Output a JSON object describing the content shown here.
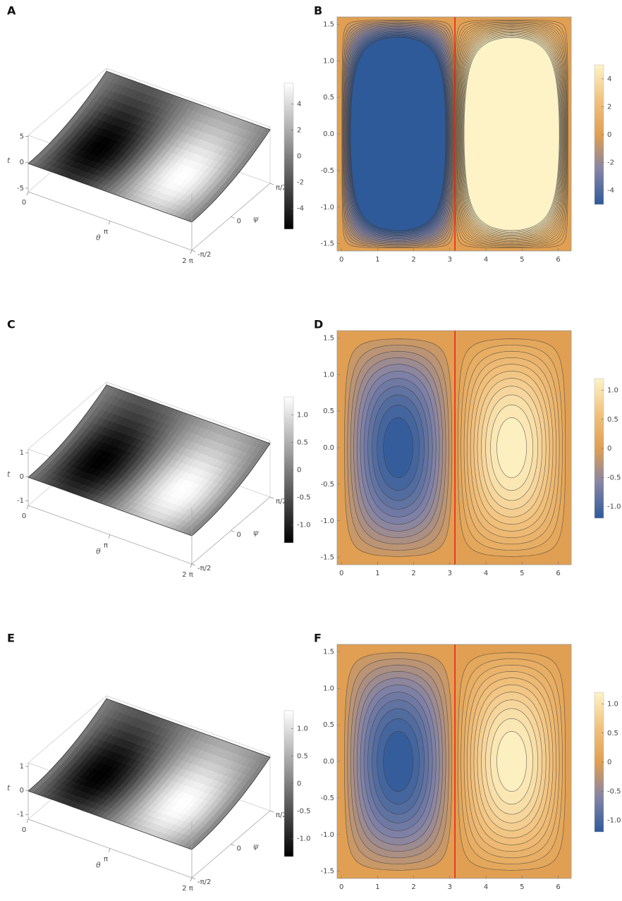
{
  "chart_data": [
    {
      "type": "surface3d",
      "label": "A",
      "xlabel": "θ",
      "ylabel": "ψ",
      "zlabel": "t",
      "xlim": [
        0,
        6.2832
      ],
      "ylim": [
        -1.5708,
        1.5708
      ],
      "zlim": [
        -5.7,
        5.2
      ],
      "xticks": [
        0,
        {
          "value": 3.1416,
          "label": "π"
        },
        {
          "value": 6.2832,
          "label": "2 π"
        }
      ],
      "yticks": [
        {
          "value": -1.5708,
          "label": "-π/2"
        },
        0,
        {
          "value": 1.5708,
          "label": "π/2"
        }
      ],
      "zticks": [
        -5,
        0,
        5
      ],
      "colorbar": {
        "lim": [
          -5.6,
          5.6
        ],
        "ticks": [
          -4,
          -2,
          0,
          2,
          4
        ],
        "colormap": [
          "#000000",
          "#ffffff"
        ]
      }
    },
    {
      "type": "contour",
      "label": "B",
      "xlim": [
        -0.12,
        6.36
      ],
      "ylim": [
        -1.6,
        1.6
      ],
      "xticks": [
        0,
        1,
        2,
        3,
        4,
        5,
        6
      ],
      "yticks": [
        -1.5,
        {
          "value": -1,
          "label": "-1.0"
        },
        -0.5,
        {
          "value": 0,
          "label": "0.0"
        },
        0.5,
        {
          "value": 1,
          "label": "1.0"
        },
        1.5
      ],
      "vline": 3.1416,
      "vline_color": "#e8241b",
      "colorbar": {
        "lim": [
          -5,
          5
        ],
        "ticks": [
          -4,
          -2,
          0,
          2,
          4
        ],
        "colormap": [
          "#2f5a9a",
          "#8584a6",
          "#e09f52",
          "#f1c27e",
          "#fdf3c6"
        ]
      }
    },
    {
      "type": "surface3d",
      "label": "C",
      "xlabel": "θ",
      "ylabel": "ψ",
      "zlabel": "t",
      "xlim": [
        0,
        6.2832
      ],
      "ylim": [
        -1.5708,
        1.5708
      ],
      "zlim": [
        -1.2,
        1.15
      ],
      "xticks": [
        0,
        {
          "value": 3.1416,
          "label": "π"
        },
        {
          "value": 6.2832,
          "label": "2 π"
        }
      ],
      "yticks": [
        {
          "value": -1.5708,
          "label": "-π/2"
        },
        0,
        {
          "value": 1.5708,
          "label": "π/2"
        }
      ],
      "zticks": [
        -1,
        0,
        1
      ],
      "colorbar": {
        "lim": [
          -1.33,
          1.33
        ],
        "ticks": [
          {
            "value": -1,
            "label": "-1.0"
          },
          -0.5,
          0,
          0.5,
          {
            "value": 1,
            "label": "1.0"
          }
        ],
        "colormap": [
          "#000000",
          "#ffffff"
        ]
      }
    },
    {
      "type": "contour",
      "label": "D",
      "xlim": [
        -0.12,
        6.36
      ],
      "ylim": [
        -1.6,
        1.6
      ],
      "xticks": [
        0,
        1,
        2,
        3,
        4,
        5,
        6
      ],
      "yticks": [
        -1.5,
        {
          "value": -1,
          "label": "-1.0"
        },
        -0.5,
        {
          "value": 0,
          "label": "0.0"
        },
        0.5,
        {
          "value": 1,
          "label": "1.0"
        },
        1.5
      ],
      "vline": 3.1416,
      "vline_color": "#e8241b",
      "colorbar": {
        "lim": [
          -1.2,
          1.2
        ],
        "ticks": [
          {
            "value": -1,
            "label": "-1.0"
          },
          -0.5,
          0,
          0.5,
          {
            "value": 1,
            "label": "1.0"
          }
        ],
        "colormap": [
          "#2f5a9a",
          "#8584a6",
          "#e09f52",
          "#f1c27e",
          "#fdf3c6"
        ]
      }
    },
    {
      "type": "surface3d",
      "label": "E",
      "xlabel": "θ",
      "ylabel": "ψ",
      "zlabel": "t",
      "xlim": [
        0,
        6.2832
      ],
      "ylim": [
        -1.5708,
        1.5708
      ],
      "zlim": [
        -1.2,
        1.15
      ],
      "xticks": [
        0,
        {
          "value": 3.1416,
          "label": "π"
        },
        {
          "value": 6.2832,
          "label": "2 π"
        }
      ],
      "yticks": [
        {
          "value": -1.5708,
          "label": "-π/2"
        },
        0,
        {
          "value": 1.5708,
          "label": "π/2"
        }
      ],
      "zticks": [
        -1,
        0,
        1
      ],
      "colorbar": {
        "lim": [
          -1.33,
          1.33
        ],
        "ticks": [
          {
            "value": -1,
            "label": "-1.0"
          },
          -0.5,
          0,
          0.5,
          {
            "value": 1,
            "label": "1.0"
          }
        ],
        "colormap": [
          "#000000",
          "#ffffff"
        ]
      }
    },
    {
      "type": "contour",
      "label": "F",
      "xlim": [
        -0.12,
        6.36
      ],
      "ylim": [
        -1.6,
        1.6
      ],
      "xticks": [
        0,
        1,
        2,
        3,
        4,
        5,
        6
      ],
      "yticks": [
        -1.5,
        {
          "value": -1,
          "label": "-1.0"
        },
        -0.5,
        {
          "value": 0,
          "label": "0.0"
        },
        0.5,
        {
          "value": 1,
          "label": "1.0"
        },
        1.5
      ],
      "vline": 3.1416,
      "vline_color": "#e8241b",
      "colorbar": {
        "lim": [
          -1.2,
          1.2
        ],
        "ticks": [
          {
            "value": -1,
            "label": "-1.0"
          },
          -0.5,
          0,
          0.5,
          {
            "value": 1,
            "label": "1.0"
          }
        ],
        "colormap": [
          "#2f5a9a",
          "#8584a6",
          "#e09f52",
          "#f1c27e",
          "#fdf3c6"
        ]
      }
    }
  ]
}
